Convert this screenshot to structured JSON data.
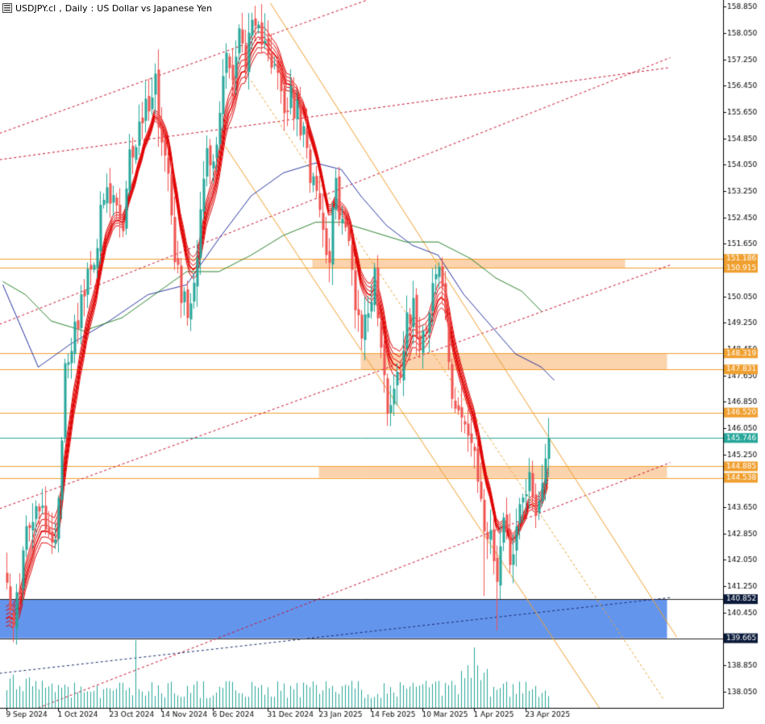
{
  "window": {
    "symbol": "USDJPY.cl",
    "timeframe": "Daily",
    "description": "US Dollar vs Japanese Yen"
  },
  "colors": {
    "bull": "#26a69a",
    "bear": "#ef5350",
    "zone_fill": "#fbd3ad",
    "support_fill": "#6495ed",
    "hline": "#f0a030",
    "current_line": "#26a69a",
    "ribbon": "#e00000",
    "ma_blue": "#1e2b9c",
    "ma_green": "#1c7a1c",
    "trend_red": "#c8102e",
    "trend_orange": "#f0a030",
    "volume": "#26a69a"
  },
  "chart_data": {
    "type": "candlestick",
    "x_labels": [
      "9 Sep 2024",
      "1 Oct 2024",
      "23 Oct 2024",
      "14 Nov 2024",
      "6 Dec 2024",
      "31 Dec 2024",
      "23 Jan 2025",
      "14 Feb 2025",
      "10 Mar 2025",
      "1 Apr 2025",
      "23 Apr 2025"
    ],
    "x_label_bars": [
      0,
      16,
      32,
      48,
      64,
      81,
      97,
      113,
      129,
      145,
      161
    ],
    "y_ticks": [
      "158.850",
      "158.050",
      "157.250",
      "156.450",
      "155.650",
      "154.850",
      "154.050",
      "153.250",
      "152.450",
      "151.650",
      "150.050",
      "149.250",
      "148.450",
      "147.650",
      "146.850",
      "146.050",
      "145.250",
      "143.650",
      "142.850",
      "142.050",
      "141.250",
      "140.450",
      "138.850",
      "138.050"
    ],
    "ylim": [
      137.55,
      159.05
    ],
    "price_tags": [
      {
        "price": 151.186,
        "label": "151.186",
        "style": "zone"
      },
      {
        "price": 150.915,
        "label": "150.915",
        "style": "zone"
      },
      {
        "price": 148.319,
        "label": "148.319",
        "style": "zone"
      },
      {
        "price": 147.831,
        "label": "147.831",
        "style": "zone"
      },
      {
        "price": 146.52,
        "label": "146.520",
        "style": "zone"
      },
      {
        "price": 145.746,
        "label": "145.746",
        "style": "current"
      },
      {
        "price": 144.885,
        "label": "144.885",
        "style": "zone"
      },
      {
        "price": 144.538,
        "label": "144.538",
        "style": "zone"
      },
      {
        "price": 140.852,
        "label": "140.852",
        "style": "dark"
      },
      {
        "price": 139.665,
        "label": "139.665",
        "style": "dark"
      }
    ],
    "zones": [
      {
        "from_bar": 95,
        "to_bar": 192,
        "top": 151.186,
        "bottom": 150.915,
        "color": "orange"
      },
      {
        "from_bar": 110,
        "to_bar": 205,
        "top": 148.319,
        "bottom": 147.831,
        "color": "orange"
      },
      {
        "from_bar": 97,
        "to_bar": 205,
        "top": 144.885,
        "bottom": 144.538,
        "color": "orange"
      },
      {
        "from_bar": -2,
        "to_bar": 205,
        "top": 140.852,
        "bottom": 139.665,
        "color": "blue"
      }
    ],
    "hlines": [
      151.186,
      150.915,
      148.319,
      147.831,
      146.52,
      144.885,
      144.538
    ],
    "anchors": [
      [
        0,
        141.8
      ],
      [
        2,
        139.7
      ],
      [
        3,
        140.8
      ],
      [
        6,
        142.8
      ],
      [
        10,
        143.5
      ],
      [
        12,
        143.3
      ],
      [
        14,
        142.2
      ],
      [
        16,
        144.0
      ],
      [
        18,
        148.0
      ],
      [
        22,
        149.5
      ],
      [
        26,
        150.8
      ],
      [
        30,
        153.0
      ],
      [
        34,
        152.8
      ],
      [
        36,
        151.8
      ],
      [
        38,
        154.2
      ],
      [
        42,
        155.5
      ],
      [
        46,
        156.6
      ],
      [
        48,
        154.6
      ],
      [
        50,
        154.2
      ],
      [
        52,
        151.5
      ],
      [
        54,
        150.2
      ],
      [
        56,
        149.6
      ],
      [
        58,
        150.5
      ],
      [
        60,
        152.8
      ],
      [
        62,
        154.3
      ],
      [
        64,
        153.9
      ],
      [
        66,
        155.6
      ],
      [
        68,
        157.8
      ],
      [
        70,
        156.6
      ],
      [
        72,
        158.0
      ],
      [
        74,
        157.4
      ],
      [
        76,
        158.0
      ],
      [
        78,
        157.9
      ],
      [
        80,
        158.2
      ],
      [
        82,
        157.2
      ],
      [
        84,
        156.6
      ],
      [
        86,
        155.6
      ],
      [
        88,
        156.0
      ],
      [
        90,
        155.6
      ],
      [
        92,
        154.8
      ],
      [
        94,
        153.9
      ],
      [
        96,
        153.7
      ],
      [
        98,
        152.0
      ],
      [
        100,
        151.4
      ],
      [
        102,
        153.3
      ],
      [
        104,
        152.3
      ],
      [
        106,
        151.6
      ],
      [
        108,
        150.0
      ],
      [
        110,
        149.0
      ],
      [
        112,
        149.6
      ],
      [
        114,
        150.8
      ],
      [
        116,
        148.3
      ],
      [
        118,
        146.8
      ],
      [
        120,
        147.2
      ],
      [
        122,
        148.0
      ],
      [
        124,
        149.6
      ],
      [
        126,
        149.6
      ],
      [
        128,
        148.8
      ],
      [
        130,
        149.4
      ],
      [
        132,
        150.4
      ],
      [
        134,
        150.9
      ],
      [
        136,
        149.6
      ],
      [
        138,
        146.5
      ],
      [
        140,
        147.0
      ],
      [
        142,
        146.2
      ],
      [
        144,
        145.4
      ],
      [
        146,
        144.5
      ],
      [
        148,
        143.1
      ],
      [
        150,
        142.6
      ],
      [
        152,
        141.7
      ],
      [
        154,
        143.4
      ],
      [
        156,
        142.2
      ],
      [
        158,
        143.0
      ],
      [
        160,
        144.2
      ],
      [
        162,
        144.6
      ],
      [
        164,
        143.4
      ],
      [
        166,
        144.6
      ],
      [
        168,
        145.8
      ]
    ],
    "ma_blue_knots": [
      [
        -1,
        150.4
      ],
      [
        10,
        147.9
      ],
      [
        20,
        148.6
      ],
      [
        32,
        149.3
      ],
      [
        44,
        150.1
      ],
      [
        56,
        150.4
      ],
      [
        66,
        151.8
      ],
      [
        76,
        153.1
      ],
      [
        86,
        153.8
      ],
      [
        96,
        154.1
      ],
      [
        104,
        153.9
      ],
      [
        110,
        153.1
      ],
      [
        118,
        152.2
      ],
      [
        126,
        151.6
      ],
      [
        134,
        151.3
      ],
      [
        142,
        150.1
      ],
      [
        150,
        149.2
      ],
      [
        158,
        148.3
      ],
      [
        166,
        147.9
      ],
      [
        170,
        147.5
      ]
    ],
    "ma_green_knots": [
      [
        -1,
        150.5
      ],
      [
        6,
        150.1
      ],
      [
        14,
        149.3
      ],
      [
        24,
        149.0
      ],
      [
        36,
        149.4
      ],
      [
        46,
        150.1
      ],
      [
        56,
        150.8
      ],
      [
        66,
        150.8
      ],
      [
        76,
        151.3
      ],
      [
        86,
        151.9
      ],
      [
        96,
        152.3
      ],
      [
        104,
        152.3
      ],
      [
        114,
        152.0
      ],
      [
        124,
        151.7
      ],
      [
        134,
        151.7
      ],
      [
        144,
        151.2
      ],
      [
        152,
        150.6
      ],
      [
        160,
        150.2
      ],
      [
        166,
        149.6
      ]
    ],
    "trendlines": [
      {
        "from": [
          -2,
          149.2
        ],
        "to": [
          206,
          157.3
        ],
        "color": "red",
        "dash": true
      },
      {
        "from": [
          -2,
          155.0
        ],
        "to": [
          112,
          159.05
        ],
        "color": "red",
        "dash": true
      },
      {
        "from": [
          -2,
          154.2
        ],
        "to": [
          206,
          157.0
        ],
        "color": "red",
        "dash": true
      },
      {
        "from": [
          -2,
          143.6
        ],
        "to": [
          206,
          151.0
        ],
        "color": "red",
        "dash": true
      },
      {
        "from": [
          10,
          137.55
        ],
        "to": [
          206,
          145.0
        ],
        "color": "red",
        "dash": true
      },
      {
        "from": [
          -2,
          138.6
        ],
        "to": [
          206,
          140.9
        ],
        "color": "navy",
        "dash": true
      },
      {
        "from": [
          82,
          158.95
        ],
        "to": [
          208,
          139.7
        ],
        "color": "orange",
        "dash": false
      },
      {
        "from": [
          68,
          154.6
        ],
        "to": [
          184,
          137.55
        ],
        "color": "orange",
        "dash": false
      },
      {
        "from": [
          76,
          156.6
        ],
        "to": [
          204,
          137.8
        ],
        "color": "orange",
        "dash": true
      }
    ],
    "volume_seed": 17
  }
}
